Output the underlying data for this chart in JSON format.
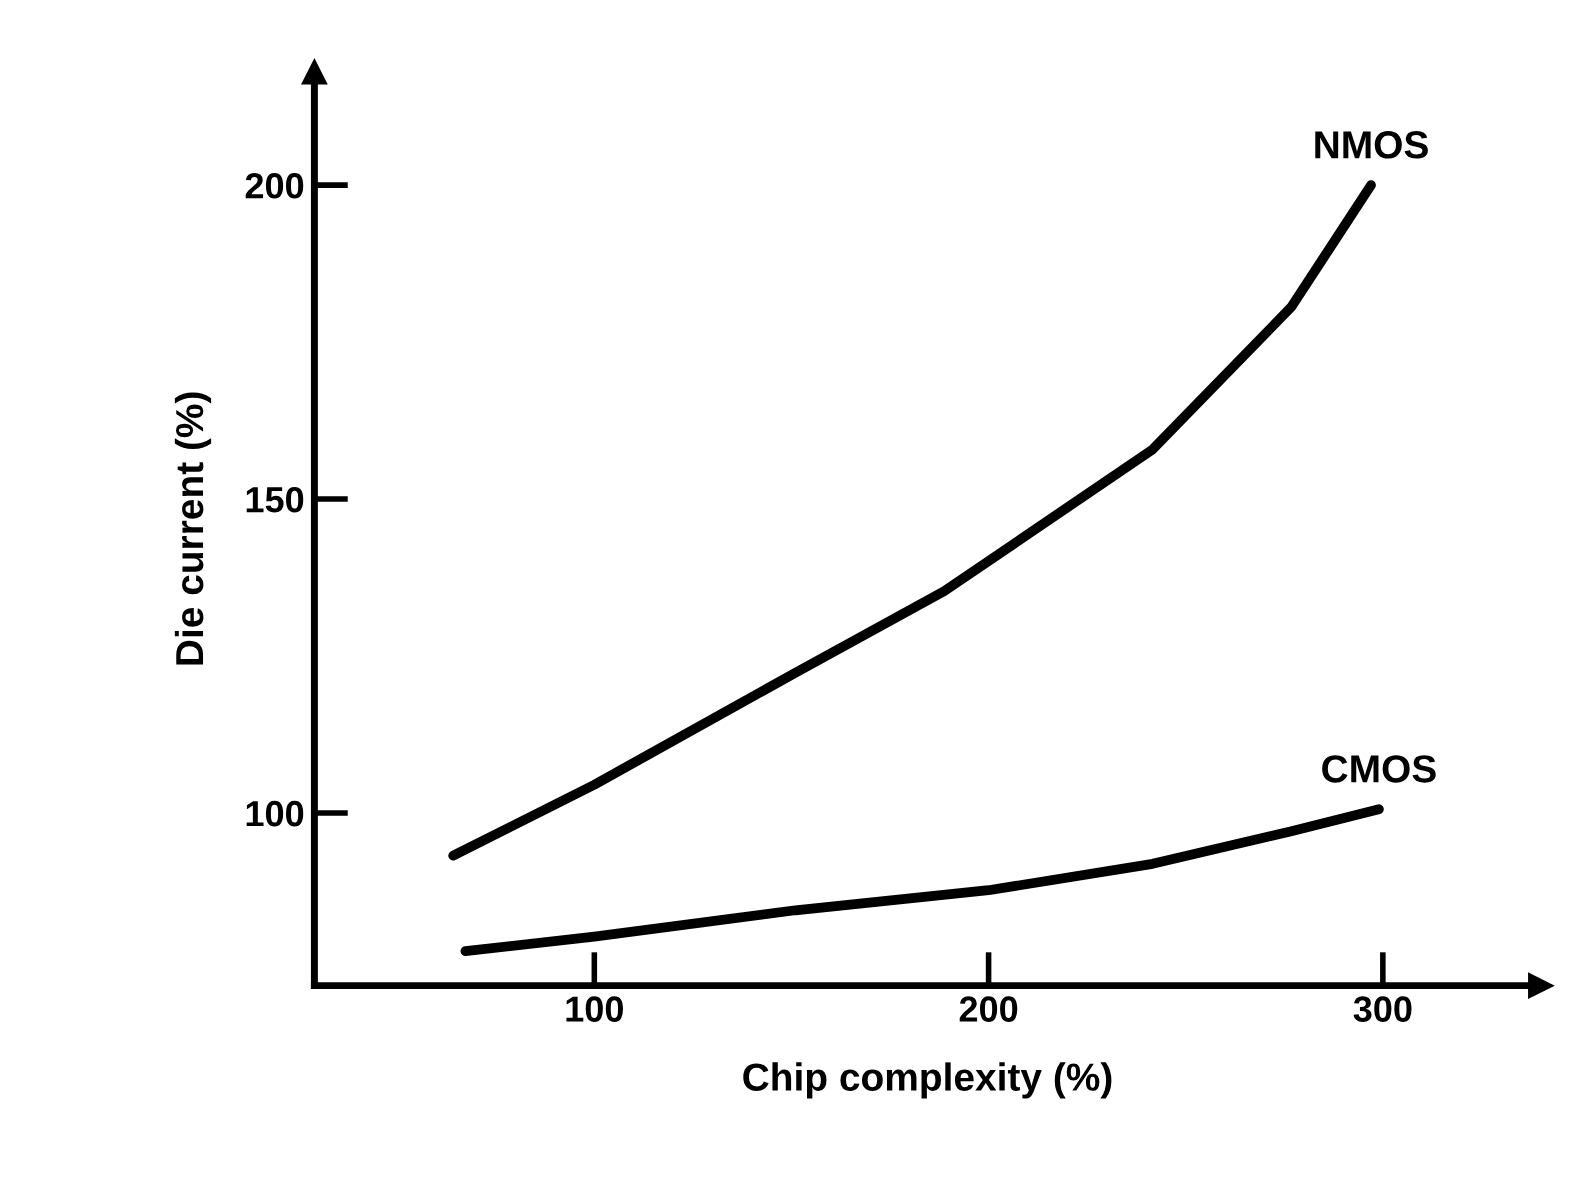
{
  "chart_data": {
    "type": "line",
    "xlabel": "Chip complexity (%)",
    "ylabel": "Die current (%)",
    "xlim": [
      29,
      340
    ],
    "ylim": [
      72.5,
      218
    ],
    "xticks": [
      100,
      200,
      300
    ],
    "yticks": [
      100,
      150,
      200
    ],
    "grid": false,
    "legend": false,
    "marker": "none",
    "line_style": "solid",
    "series": [
      {
        "name": "NMOS",
        "color": "#000000",
        "x": [
          64.2,
          100,
          150.9,
          188.7,
          241.6,
          276.8,
          297
        ],
        "values": [
          93.2,
          104.5,
          122.3,
          135.3,
          157.9,
          180.6,
          200
        ]
      },
      {
        "name": "CMOS",
        "color": "#000000",
        "x": [
          67.3,
          100,
          151,
          200,
          241.6,
          276.8,
          299
        ],
        "values": [
          78,
          80.3,
          84.5,
          87.7,
          91.9,
          97.1,
          100.6
        ]
      }
    ]
  }
}
